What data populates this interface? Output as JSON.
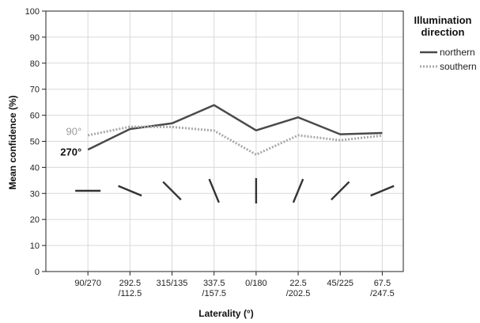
{
  "chart_data": {
    "type": "line",
    "xlabel": "Laterality (°)",
    "ylabel": "Mean confidence (%)",
    "ylim": [
      0,
      100
    ],
    "yticks": [
      0,
      10,
      20,
      30,
      40,
      50,
      60,
      70,
      80,
      90,
      100
    ],
    "grid": true,
    "categories": [
      [
        "90/270"
      ],
      [
        "292.5",
        "/112.5"
      ],
      [
        "315/135"
      ],
      [
        "337.5",
        "/157.5"
      ],
      [
        "0/180"
      ],
      [
        "22.5",
        "/202.5"
      ],
      [
        "45/225"
      ],
      [
        "67.5",
        "/247.5"
      ]
    ],
    "orientation_glyphs_deg": [
      0,
      22.5,
      45,
      67.5,
      90,
      112.5,
      135,
      157.5
    ],
    "glyph_y": 31,
    "legend": {
      "title_lines": [
        "Illumination",
        "direction"
      ],
      "placement": "right"
    },
    "series": [
      {
        "name": "northern",
        "style": "solid",
        "color": "#4a4a4a",
        "values": [
          46.8,
          54.7,
          56.9,
          63.9,
          54.2,
          59.2,
          52.7,
          53.2
        ]
      },
      {
        "name": "southern",
        "style": "dotted",
        "color": "#a8a8a8",
        "values": [
          52.3,
          55.6,
          55.5,
          54.1,
          44.9,
          52.3,
          50.4,
          52.2
        ]
      }
    ],
    "annotations": [
      {
        "text": "90°",
        "color": "#9a9a9a",
        "y": 52.5,
        "bold": false
      },
      {
        "text": "270°",
        "color": "#111111",
        "y": 44.5,
        "bold": true
      }
    ]
  }
}
